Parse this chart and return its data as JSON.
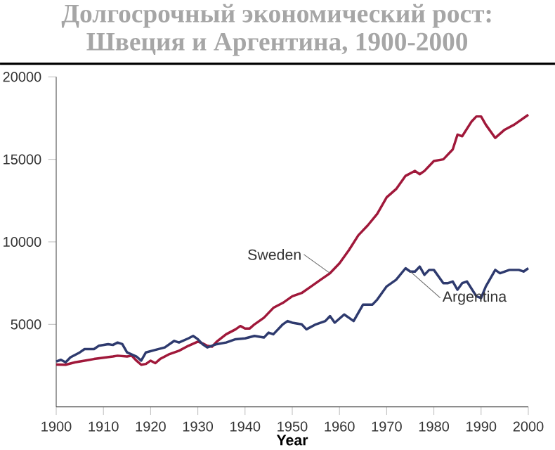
{
  "chart_data": {
    "type": "line",
    "title": "Долгосрочный экономический рост:\nШвеция и Аргентина, 1900-2000",
    "xlabel": "Year",
    "xlim": [
      1900,
      2000
    ],
    "xticks": [
      1900,
      1910,
      1920,
      1930,
      1940,
      1950,
      1960,
      1970,
      1980,
      1990,
      2000
    ],
    "ylim": [
      0,
      20000
    ],
    "yticks": [
      5000,
      10000,
      15000,
      20000
    ],
    "grid": false,
    "legend": false,
    "marker": "none",
    "line_style": "solid",
    "series": [
      {
        "name": "Sweden",
        "color": "#a0183a",
        "x": [
          1900,
          1902,
          1904,
          1906,
          1908,
          1910,
          1912,
          1913,
          1915,
          1916,
          1917,
          1918,
          1919,
          1920,
          1921,
          1922,
          1924,
          1926,
          1928,
          1930,
          1931,
          1932,
          1933,
          1934,
          1936,
          1938,
          1939,
          1940,
          1941,
          1942,
          1944,
          1946,
          1948,
          1950,
          1952,
          1954,
          1956,
          1958,
          1960,
          1962,
          1964,
          1966,
          1968,
          1970,
          1972,
          1974,
          1976,
          1977,
          1978,
          1980,
          1982,
          1984,
          1985,
          1986,
          1988,
          1989,
          1990,
          1991,
          1993,
          1995,
          1997,
          2000
        ],
        "values": [
          2560,
          2550,
          2700,
          2800,
          2900,
          2980,
          3050,
          3100,
          3050,
          3100,
          2800,
          2550,
          2600,
          2800,
          2650,
          2900,
          3200,
          3400,
          3700,
          3950,
          3850,
          3700,
          3650,
          3950,
          4400,
          4700,
          4900,
          4750,
          4750,
          5000,
          5400,
          6000,
          6300,
          6700,
          6900,
          7300,
          7700,
          8100,
          8700,
          9500,
          10400,
          11000,
          11700,
          12700,
          13200,
          14000,
          14300,
          14100,
          14300,
          14900,
          15000,
          15600,
          16500,
          16400,
          17300,
          17600,
          17600,
          17100,
          16300,
          16800,
          17100,
          17700
        ]
      },
      {
        "name": "Argentina",
        "color": "#2e3a6e",
        "x": [
          1900,
          1901,
          1902,
          1903,
          1905,
          1906,
          1908,
          1909,
          1911,
          1912,
          1913,
          1914,
          1915,
          1917,
          1918,
          1919,
          1921,
          1923,
          1925,
          1926,
          1928,
          1929,
          1930,
          1931,
          1932,
          1934,
          1936,
          1938,
          1940,
          1942,
          1944,
          1945,
          1946,
          1948,
          1949,
          1950,
          1952,
          1953,
          1955,
          1957,
          1958,
          1959,
          1961,
          1962,
          1963,
          1965,
          1967,
          1968,
          1970,
          1972,
          1974,
          1975,
          1976,
          1977,
          1978,
          1979,
          1980,
          1982,
          1983,
          1984,
          1985,
          1986,
          1987,
          1989,
          1990,
          1991,
          1993,
          1994,
          1996,
          1998,
          1999,
          2000
        ],
        "values": [
          2750,
          2850,
          2700,
          3000,
          3300,
          3500,
          3500,
          3700,
          3800,
          3750,
          3900,
          3800,
          3300,
          3050,
          2800,
          3300,
          3450,
          3600,
          4000,
          3900,
          4150,
          4300,
          4100,
          3800,
          3600,
          3800,
          3900,
          4100,
          4150,
          4300,
          4200,
          4500,
          4400,
          5000,
          5200,
          5100,
          5000,
          4700,
          5000,
          5200,
          5500,
          5100,
          5600,
          5400,
          5200,
          6200,
          6200,
          6500,
          7300,
          7700,
          8400,
          8200,
          8200,
          8500,
          8000,
          8300,
          8300,
          7500,
          7500,
          7600,
          7100,
          7500,
          7600,
          6700,
          6600,
          7300,
          8300,
          8100,
          8300,
          8300,
          8200,
          8400
        ]
      }
    ]
  }
}
